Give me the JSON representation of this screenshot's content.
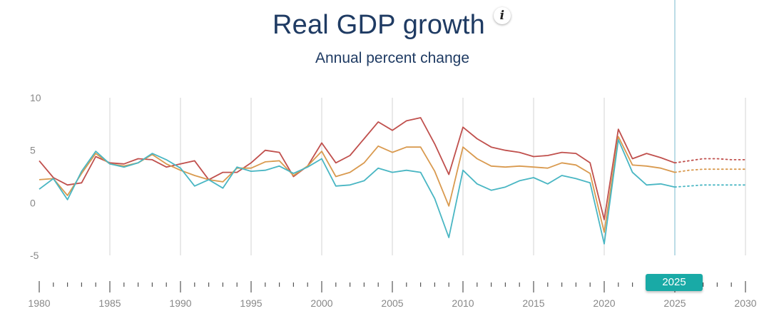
{
  "header": {
    "title": "Real GDP growth",
    "subtitle": "Annual percent change",
    "info_label": "i"
  },
  "current_year_badge": "2025",
  "chart_data": {
    "type": "line",
    "title": "Real GDP growth",
    "subtitle": "Annual percent change",
    "xlabel": "",
    "ylabel": "",
    "xlim": [
      1980,
      2030
    ],
    "ylim": [
      -5,
      10
    ],
    "yticks": [
      10,
      5,
      0,
      -5
    ],
    "xticks": [
      1980,
      1985,
      1990,
      1995,
      2000,
      2005,
      2010,
      2015,
      2020,
      2025,
      2030
    ],
    "current_year": 2025,
    "projection_start": 2025,
    "x": [
      1980,
      1981,
      1982,
      1983,
      1984,
      1985,
      1986,
      1987,
      1988,
      1989,
      1990,
      1991,
      1992,
      1993,
      1994,
      1995,
      1996,
      1997,
      1998,
      1999,
      2000,
      2001,
      2002,
      2003,
      2004,
      2005,
      2006,
      2007,
      2008,
      2009,
      2010,
      2011,
      2012,
      2013,
      2014,
      2015,
      2016,
      2017,
      2018,
      2019,
      2020,
      2021,
      2022,
      2023,
      2024,
      2025,
      2026,
      2027,
      2028,
      2029,
      2030
    ],
    "series": [
      {
        "name": "red",
        "color": "#c0504d",
        "values": [
          4.0,
          2.4,
          1.7,
          1.9,
          4.4,
          3.8,
          3.7,
          4.2,
          4.1,
          3.4,
          3.7,
          4.0,
          2.2,
          2.9,
          2.9,
          3.8,
          5.0,
          4.8,
          2.5,
          3.5,
          5.7,
          3.8,
          4.5,
          6.1,
          7.7,
          6.9,
          7.8,
          8.1,
          5.6,
          2.7,
          7.2,
          6.1,
          5.3,
          5.0,
          4.8,
          4.4,
          4.5,
          4.8,
          4.7,
          3.8,
          -1.6,
          7.0,
          4.2,
          4.7,
          4.3,
          3.8,
          4.0,
          4.2,
          4.2,
          4.1,
          4.1
        ]
      },
      {
        "name": "orange",
        "color": "#d99a4f",
        "values": [
          2.2,
          2.3,
          0.7,
          2.8,
          4.7,
          3.7,
          3.5,
          3.8,
          4.6,
          3.7,
          3.1,
          2.6,
          2.2,
          2.0,
          3.3,
          3.3,
          3.9,
          4.0,
          2.6,
          3.5,
          4.9,
          2.5,
          2.9,
          3.8,
          5.4,
          4.8,
          5.3,
          5.3,
          3.0,
          -0.3,
          5.3,
          4.2,
          3.5,
          3.4,
          3.5,
          3.4,
          3.3,
          3.8,
          3.6,
          2.8,
          -2.8,
          6.3,
          3.6,
          3.5,
          3.3,
          2.9,
          3.1,
          3.2,
          3.2,
          3.2,
          3.2
        ]
      },
      {
        "name": "teal",
        "color": "#49b6c3",
        "values": [
          1.3,
          2.3,
          0.3,
          3.0,
          4.9,
          3.7,
          3.4,
          3.8,
          4.7,
          4.1,
          3.3,
          1.6,
          2.2,
          1.4,
          3.4,
          3.0,
          3.1,
          3.5,
          2.8,
          3.4,
          4.2,
          1.6,
          1.7,
          2.1,
          3.3,
          2.9,
          3.1,
          2.9,
          0.4,
          -3.3,
          3.1,
          1.8,
          1.2,
          1.5,
          2.1,
          2.4,
          1.8,
          2.6,
          2.3,
          1.9,
          -3.9,
          6.0,
          2.9,
          1.7,
          1.8,
          1.5,
          1.6,
          1.7,
          1.7,
          1.7,
          1.7
        ]
      }
    ]
  }
}
